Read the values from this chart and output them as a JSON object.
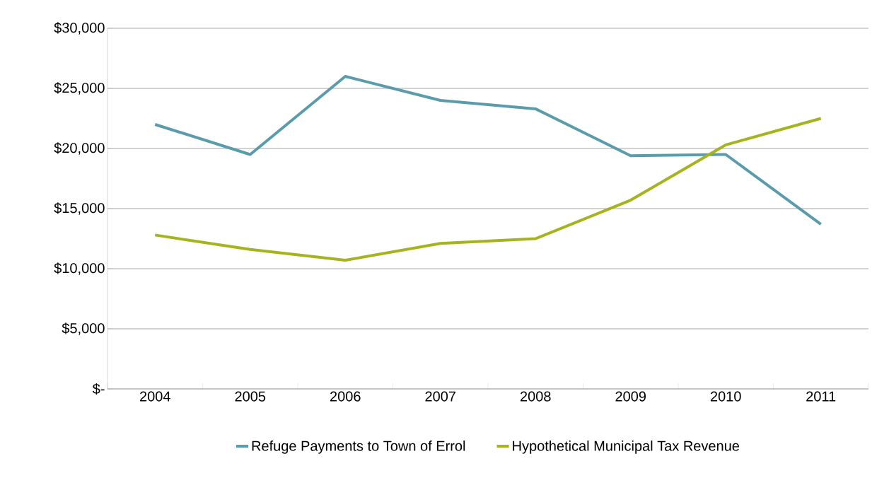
{
  "chart_data": {
    "type": "line",
    "categories": [
      "2004",
      "2005",
      "2006",
      "2007",
      "2008",
      "2009",
      "2010",
      "2011"
    ],
    "series": [
      {
        "name": "Refuge Payments to Town of Errol",
        "color": "#5a9bac",
        "values": [
          22000,
          19500,
          26000,
          24000,
          23300,
          19400,
          19500,
          13700
        ]
      },
      {
        "name": "Hypothetical Municipal Tax Revenue",
        "color": "#a5b41d",
        "values": [
          12800,
          11600,
          10700,
          12100,
          12500,
          15700,
          20300,
          22500
        ]
      }
    ],
    "ylim": [
      0,
      30000
    ],
    "yticks": [
      {
        "value": 0,
        "label": "$-"
      },
      {
        "value": 5000,
        "label": "$5,000"
      },
      {
        "value": 10000,
        "label": "$10,000"
      },
      {
        "value": 15000,
        "label": "$15,000"
      },
      {
        "value": 20000,
        "label": "$20,000"
      },
      {
        "value": 25000,
        "label": "$25,000"
      },
      {
        "value": 30000,
        "label": "$30,000"
      }
    ],
    "grid": "y",
    "legend": "bottom",
    "marker": "none",
    "line_style": "solid"
  }
}
